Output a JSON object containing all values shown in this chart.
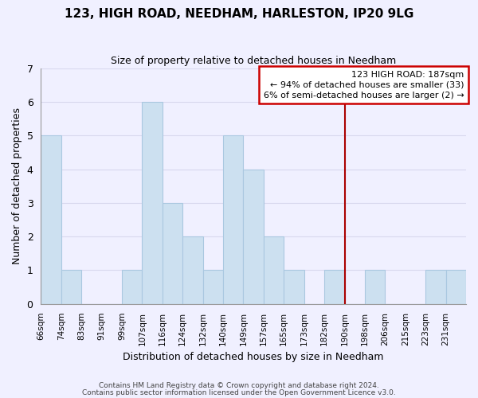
{
  "title": "123, HIGH ROAD, NEEDHAM, HARLESTON, IP20 9LG",
  "subtitle": "Size of property relative to detached houses in Needham",
  "xlabel": "Distribution of detached houses by size in Needham",
  "ylabel": "Number of detached properties",
  "bar_labels": [
    "66sqm",
    "74sqm",
    "83sqm",
    "91sqm",
    "99sqm",
    "107sqm",
    "116sqm",
    "124sqm",
    "132sqm",
    "140sqm",
    "149sqm",
    "157sqm",
    "165sqm",
    "173sqm",
    "182sqm",
    "190sqm",
    "198sqm",
    "206sqm",
    "215sqm",
    "223sqm",
    "231sqm"
  ],
  "bar_heights": [
    5,
    1,
    0,
    0,
    1,
    6,
    3,
    2,
    1,
    5,
    4,
    2,
    1,
    0,
    1,
    0,
    1,
    0,
    0,
    1,
    1
  ],
  "bar_color": "#cce0f0",
  "bar_edge_color": "#aac8e0",
  "vline_color": "#aa0000",
  "annotation_text": "123 HIGH ROAD: 187sqm\n← 94% of detached houses are smaller (33)\n6% of semi-detached houses are larger (2) →",
  "annotation_box_edge": "#cc0000",
  "annotation_box_bg": "#ffffff",
  "ylim": [
    0,
    7
  ],
  "yticks": [
    0,
    1,
    2,
    3,
    4,
    5,
    6,
    7
  ],
  "footer1": "Contains HM Land Registry data © Crown copyright and database right 2024.",
  "footer2": "Contains public sector information licensed under the Open Government Licence v3.0.",
  "bg_color": "#f0f0ff",
  "grid_color": "#d8d8ee",
  "title_fontsize": 11,
  "subtitle_fontsize": 9
}
